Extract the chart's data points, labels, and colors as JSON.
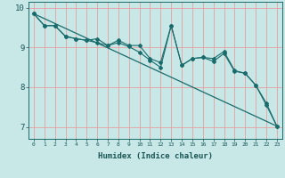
{
  "xlabel": "Humidex (Indice chaleur)",
  "background_color": "#c8e8e8",
  "line_color": "#1a6b6b",
  "grid_color": "#e8a0a0",
  "xlim": [
    -0.5,
    23.5
  ],
  "ylim": [
    6.7,
    10.15
  ],
  "yticks": [
    7,
    8,
    9,
    10
  ],
  "xticks": [
    0,
    1,
    2,
    3,
    4,
    5,
    6,
    7,
    8,
    9,
    10,
    11,
    12,
    13,
    14,
    15,
    16,
    17,
    18,
    19,
    20,
    21,
    22,
    23
  ],
  "series1_x": [
    0,
    1,
    2,
    3,
    4,
    5,
    6,
    7,
    8,
    9,
    10,
    11,
    12,
    13,
    14,
    15,
    16,
    17,
    18,
    19,
    20,
    21,
    22,
    23
  ],
  "series1_y": [
    9.85,
    9.55,
    9.55,
    9.28,
    9.22,
    9.18,
    9.12,
    9.05,
    9.12,
    9.02,
    8.88,
    8.68,
    8.5,
    9.55,
    8.55,
    8.72,
    8.75,
    8.65,
    8.85,
    8.4,
    8.35,
    8.05,
    7.55,
    7.02
  ],
  "series2_x": [
    0,
    1,
    2,
    3,
    4,
    5,
    6,
    7,
    8,
    9,
    10,
    11,
    12,
    13,
    14,
    15,
    16,
    17,
    18,
    19,
    20,
    21,
    22,
    23
  ],
  "series2_y": [
    9.85,
    9.55,
    9.55,
    9.28,
    9.22,
    9.18,
    9.22,
    9.05,
    9.18,
    9.05,
    9.05,
    8.72,
    8.62,
    9.55,
    8.55,
    8.72,
    8.75,
    8.72,
    8.9,
    8.42,
    8.35,
    8.05,
    7.6,
    7.02
  ],
  "trend_x": [
    0,
    23
  ],
  "trend_y": [
    9.85,
    7.02
  ]
}
